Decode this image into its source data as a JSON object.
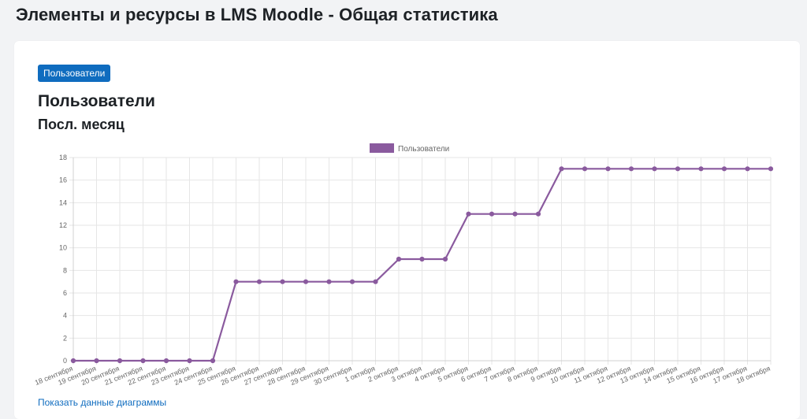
{
  "page": {
    "title": "Элементы и ресурсы в LMS Moodle - Общая статистика"
  },
  "card": {
    "tab_label": "Пользователи",
    "section_title": "Пользователи",
    "period_title": "Посл. месяц",
    "show_data_link": "Показать данные диаграммы"
  },
  "colors": {
    "series": "#8a5a9e",
    "button": "#0f6cbf",
    "grid": "#e6e6e6"
  },
  "chart_data": {
    "type": "line",
    "title": "",
    "xlabel": "",
    "ylabel": "",
    "legend_position": "top",
    "grid": true,
    "ylim": [
      0,
      18
    ],
    "yticks": [
      0,
      2,
      4,
      6,
      8,
      10,
      12,
      14,
      16,
      18
    ],
    "categories": [
      "18 сентября",
      "19 сентября",
      "20 сентября",
      "21 сентября",
      "22 сентября",
      "23 сентября",
      "24 сентября",
      "25 сентября",
      "26 сентября",
      "27 сентября",
      "28 сентября",
      "29 сентября",
      "30 сентября",
      "1 октября",
      "2 октября",
      "3 октября",
      "4 октября",
      "5 октября",
      "6 октября",
      "7 октября",
      "8 октября",
      "9 октября",
      "10 октября",
      "11 октября",
      "12 октября",
      "13 октября",
      "14 октября",
      "15 октября",
      "16 октября",
      "17 октября",
      "18 октября"
    ],
    "series": [
      {
        "name": "Пользователи",
        "values": [
          0,
          0,
          0,
          0,
          0,
          0,
          0,
          7,
          7,
          7,
          7,
          7,
          7,
          7,
          9,
          9,
          9,
          13,
          13,
          13,
          13,
          17,
          17,
          17,
          17,
          17,
          17,
          17,
          17,
          17,
          17
        ]
      }
    ]
  }
}
